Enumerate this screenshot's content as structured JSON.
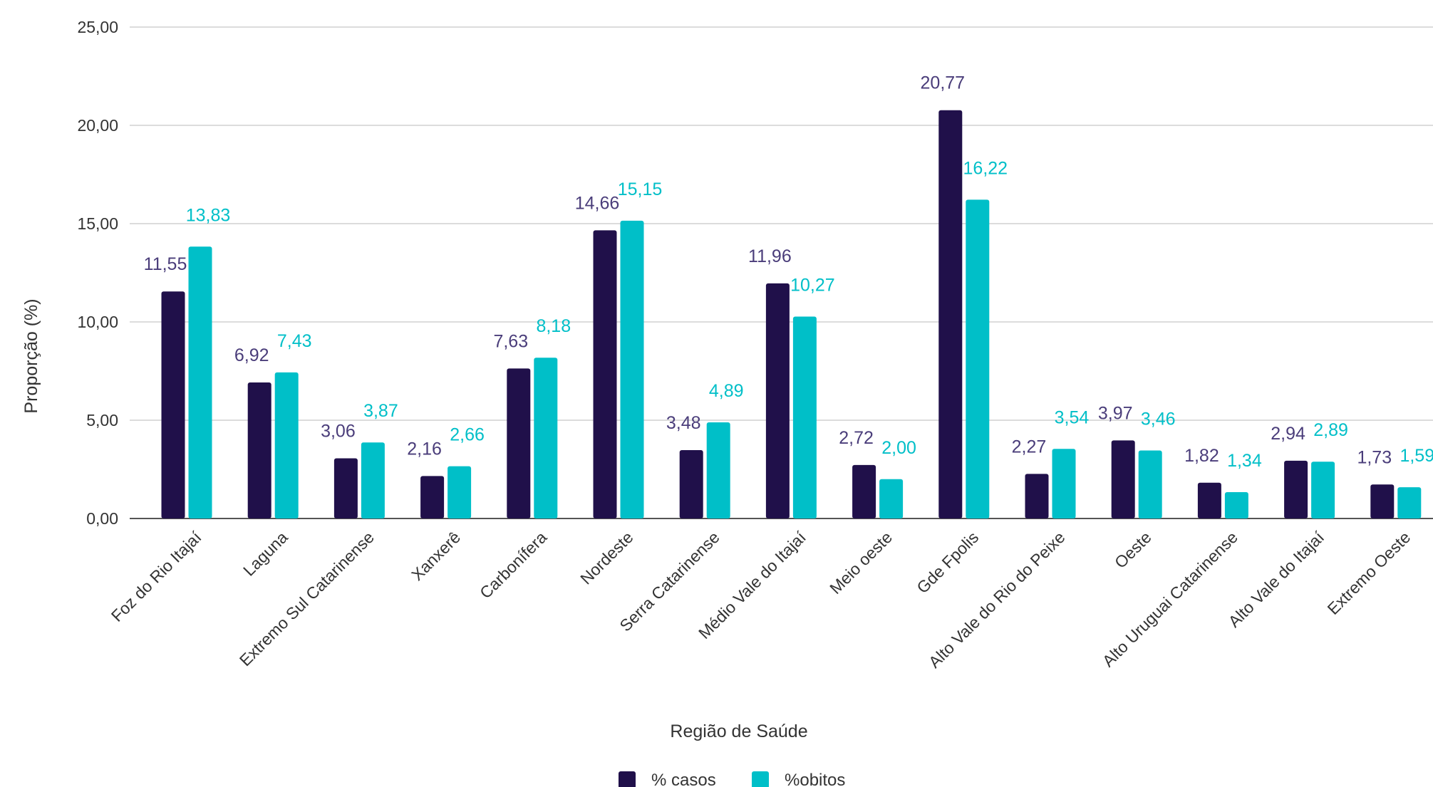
{
  "chart_data": {
    "type": "bar",
    "categories": [
      "Foz do Rio Itajaí",
      "Laguna",
      "Extremo Sul Catarinense",
      "Xanxerê",
      "Carbonífera",
      "Nordeste",
      "Serra Catarinense",
      "Médio Vale do Itajaí",
      "Meio oeste",
      "Gde Fpolis",
      "Alto Vale do Rio do Peixe",
      "Oeste",
      "Alto Uruguai Catarinense",
      "Alto Vale do Itajaí",
      "Extremo Oeste"
    ],
    "series": [
      {
        "name": "% casos",
        "color": "#20104a",
        "label_color": "#4a3d7a",
        "values": [
          11.55,
          6.92,
          3.06,
          2.16,
          7.63,
          14.66,
          3.48,
          11.96,
          2.72,
          20.77,
          2.27,
          3.97,
          1.82,
          2.94,
          1.73
        ],
        "value_labels": [
          "11,55",
          "6,92",
          "3,06",
          "2,16",
          "7,63",
          "14,66",
          "3,48",
          "11,96",
          "2,72",
          "20,77",
          "2,27",
          "3,97",
          "1,82",
          "2,94",
          "1,73"
        ]
      },
      {
        "name": "%obitos",
        "color": "#00bfc8",
        "label_color": "#00bfc8",
        "values": [
          13.83,
          7.43,
          3.87,
          2.66,
          8.18,
          15.15,
          4.89,
          10.27,
          2.0,
          16.22,
          3.54,
          3.46,
          1.34,
          2.89,
          1.59
        ],
        "value_labels": [
          "13,83",
          "7,43",
          "3,87",
          "2,66",
          "8,18",
          "15,15",
          "4,89",
          "10,27",
          "2,00",
          "16,22",
          "3,54",
          "3,46",
          "1,34",
          "2,89",
          "1,59"
        ]
      }
    ],
    "xlabel": "Região de Saúde",
    "ylabel": "Proporção (%)",
    "ylim": [
      0,
      25
    ],
    "yticks": [
      "0,00",
      "5,00",
      "10,00",
      "15,00",
      "20,00",
      "25,00"
    ],
    "grid": true,
    "legend_position": "bottom"
  }
}
